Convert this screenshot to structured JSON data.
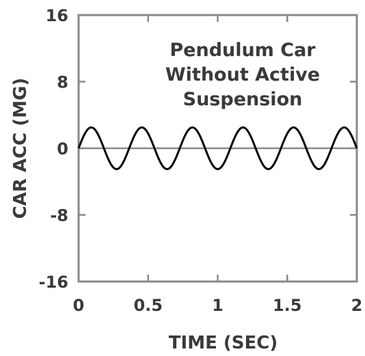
{
  "chart_data": {
    "type": "line",
    "annotation": [
      "Pendulum Car",
      "Without Active",
      "Suspension"
    ],
    "xlabel": "TIME  (SEC)",
    "ylabel": "CAR ACC  (MG)",
    "xlim": [
      0,
      2
    ],
    "ylim": [
      -16,
      16
    ],
    "xticks": [
      0,
      0.5,
      1,
      1.5,
      2
    ],
    "xtick_labels": [
      "0",
      "0.5",
      "1",
      "1.5",
      "2"
    ],
    "yticks": [
      16,
      8,
      0,
      -8,
      -16
    ],
    "ytick_labels": [
      "16",
      "8",
      "0",
      "-8",
      "-16"
    ],
    "grid": false,
    "series": [
      {
        "color": "#000000",
        "function": "sine",
        "amplitude": 2.5,
        "frequency_hz": 2.75,
        "x_range": [
          0,
          2
        ]
      }
    ],
    "colors": {
      "axis": "#888888",
      "text": "#3a3a3a",
      "line": "#000000"
    }
  }
}
